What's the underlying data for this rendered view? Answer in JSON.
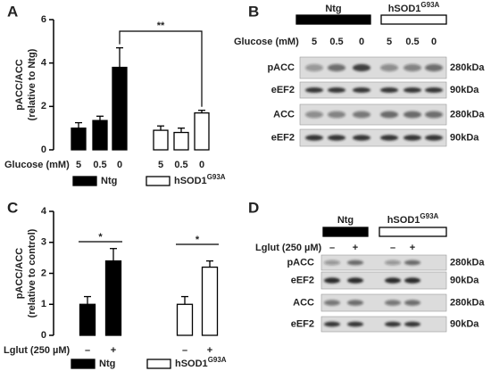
{
  "panel_labels": [
    "A",
    "B",
    "C",
    "D"
  ],
  "chart_data": [
    {
      "type": "bar",
      "y_label": [
        "pACC/ACC",
        "(relative to Ntg)"
      ],
      "x_label": "Glucose (mM)",
      "categories": [
        "5",
        "0.5",
        "0"
      ],
      "ylim": [
        0,
        6
      ],
      "yticks": [
        0,
        2,
        4,
        6
      ],
      "series": [
        {
          "name": "Ntg",
          "color": "#000000",
          "values": [
            1.0,
            1.35,
            3.8
          ],
          "errors": [
            0.25,
            0.2,
            0.9
          ]
        },
        {
          "name": "hSOD1",
          "name_superscript": "G93A",
          "color": "#ffffff",
          "values": [
            0.9,
            0.8,
            1.7
          ],
          "errors": [
            0.2,
            0.2,
            0.12
          ]
        }
      ],
      "annotations": [
        "**"
      ]
    },
    {
      "type": "bar",
      "y_label": [
        "pACC/ACC",
        "(relative to control)"
      ],
      "x_label": "Lglut (250 µM)",
      "categories": [
        "–",
        "+"
      ],
      "ylim": [
        0,
        4
      ],
      "yticks": [
        0,
        1,
        2,
        3,
        4
      ],
      "series": [
        {
          "name": "Ntg",
          "color": "#000000",
          "values": [
            1.0,
            2.4
          ],
          "errors": [
            0.25,
            0.4
          ]
        },
        {
          "name": "hSOD1",
          "name_superscript": "G93A",
          "color": "#ffffff",
          "values": [
            1.0,
            2.2
          ],
          "errors": [
            0.25,
            0.2
          ]
        }
      ],
      "annotations": [
        "*",
        "*"
      ]
    }
  ],
  "blots": [
    {
      "groups": [
        {
          "name": "Ntg"
        },
        {
          "name": "hSOD1",
          "name_superscript": "G93A"
        }
      ],
      "condition_label": "Glucose (mM)",
      "lanes": [
        "5",
        "0.5",
        "0",
        "5",
        "0.5",
        "0"
      ],
      "rows": [
        {
          "protein": "pACC",
          "size": "280kDa"
        },
        {
          "protein": "eEF2",
          "size": "90kDa"
        },
        {
          "protein": "ACC",
          "size": "280kDa"
        },
        {
          "protein": "eEF2",
          "size": "90kDa"
        }
      ]
    },
    {
      "groups": [
        {
          "name": "Ntg"
        },
        {
          "name": "hSOD1",
          "name_superscript": "G93A"
        }
      ],
      "condition_label": "Lglut (250 µM)",
      "lanes": [
        "–",
        "+",
        "–",
        "+"
      ],
      "rows": [
        {
          "protein": "pACC",
          "size": "280kDa"
        },
        {
          "protein": "eEF2",
          "size": "90kDa"
        },
        {
          "protein": "ACC",
          "size": "280kDa"
        },
        {
          "protein": "eEF2",
          "size": "90kDa"
        }
      ]
    }
  ]
}
